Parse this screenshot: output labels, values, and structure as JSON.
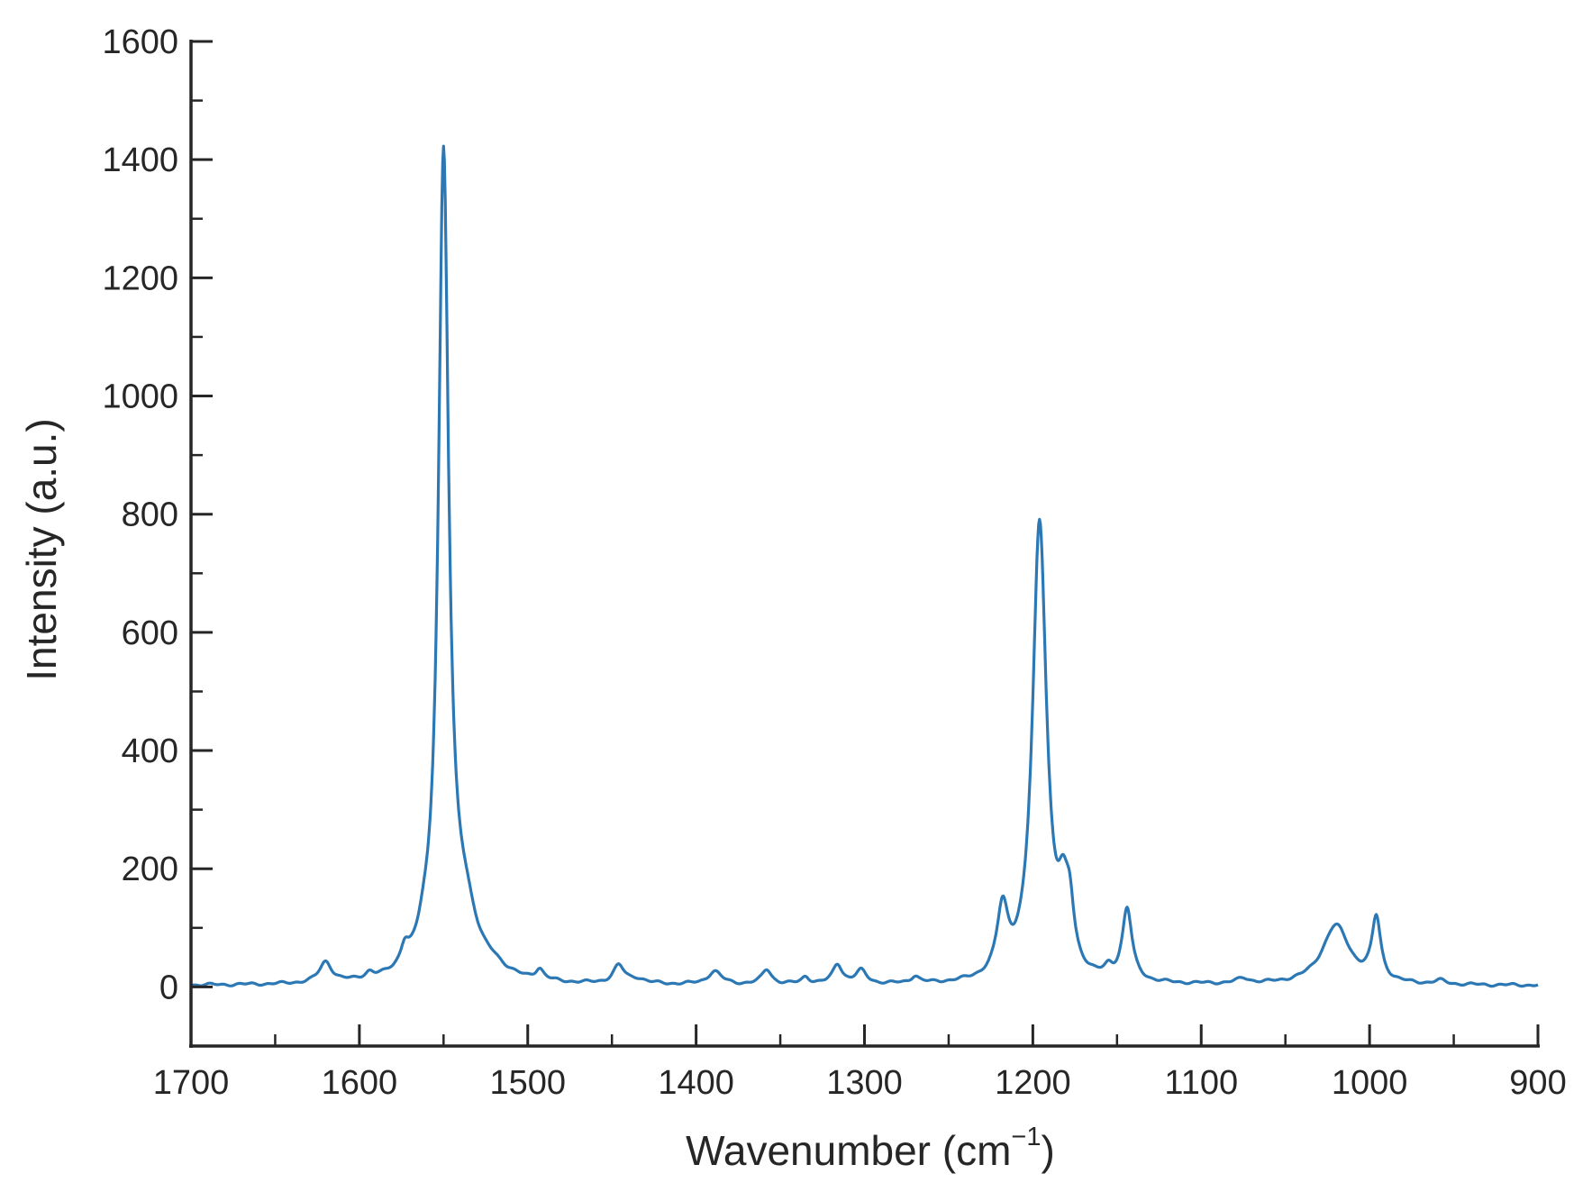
{
  "chart_data": {
    "type": "line",
    "xlabel": "Wavenumber (cm",
    "xlabel_sup": "−1",
    "xlabel_end": ")",
    "ylabel": "Intensity (a.u.)",
    "xlim": [
      1700,
      900
    ],
    "x_reversed": true,
    "ylim": [
      -100,
      1600
    ],
    "x_major_ticks": [
      1700,
      1600,
      1500,
      1400,
      1300,
      1200,
      1100,
      1000,
      900
    ],
    "x_tick_labels": [
      "1700",
      "1600",
      "1500",
      "1400",
      "1300",
      "1200",
      "1100",
      "1000",
      "900"
    ],
    "x_minor_ticks": [
      1650,
      1550,
      1450,
      1350,
      1250,
      1150,
      1050,
      950
    ],
    "y_major_ticks": [
      0,
      200,
      400,
      600,
      800,
      1000,
      1200,
      1400,
      1600
    ],
    "y_tick_labels": [
      "0",
      "200",
      "400",
      "600",
      "800",
      "1000",
      "1200",
      "1400",
      "1600"
    ],
    "y_minor_ticks": [
      -100,
      100,
      300,
      500,
      700,
      900,
      1100,
      1300,
      1500
    ],
    "grid": false,
    "line_color": "#2b78b4",
    "baseline": 2,
    "peaks": [
      {
        "x": 1620,
        "height": 35,
        "width": 4.5
      },
      {
        "x": 1594,
        "height": 10,
        "width": 3
      },
      {
        "x": 1573,
        "height": 32,
        "width": 3
      },
      {
        "x": 1562,
        "height": 25,
        "width": 4
      },
      {
        "x": 1550,
        "height": 1335,
        "width": 3.6
      },
      {
        "x": 1548,
        "height": 60,
        "width": 12
      },
      {
        "x": 1537,
        "height": 80,
        "width": 8
      },
      {
        "x": 1520,
        "height": 15,
        "width": 8
      },
      {
        "x": 1493,
        "height": 18,
        "width": 3
      },
      {
        "x": 1446,
        "height": 30,
        "width": 4
      },
      {
        "x": 1435,
        "height": 8,
        "width": 6
      },
      {
        "x": 1389,
        "height": 22,
        "width": 5
      },
      {
        "x": 1358,
        "height": 25,
        "width": 3.5
      },
      {
        "x": 1335,
        "height": 12,
        "width": 3
      },
      {
        "x": 1316,
        "height": 33,
        "width": 3.5
      },
      {
        "x": 1302,
        "height": 22,
        "width": 4
      },
      {
        "x": 1270,
        "height": 12,
        "width": 3
      },
      {
        "x": 1218,
        "height": 110,
        "width": 4
      },
      {
        "x": 1196,
        "height": 775,
        "width": 5
      },
      {
        "x": 1182,
        "height": 100,
        "width": 4
      },
      {
        "x": 1178,
        "height": 80,
        "width": 3
      },
      {
        "x": 1155,
        "height": 15,
        "width": 3
      },
      {
        "x": 1144,
        "height": 122,
        "width": 3.5
      },
      {
        "x": 1075,
        "height": 8,
        "width": 5
      },
      {
        "x": 1020,
        "height": 100,
        "width": 10
      },
      {
        "x": 996,
        "height": 105,
        "width": 3.2
      },
      {
        "x": 958,
        "height": 6,
        "width": 4
      }
    ]
  }
}
